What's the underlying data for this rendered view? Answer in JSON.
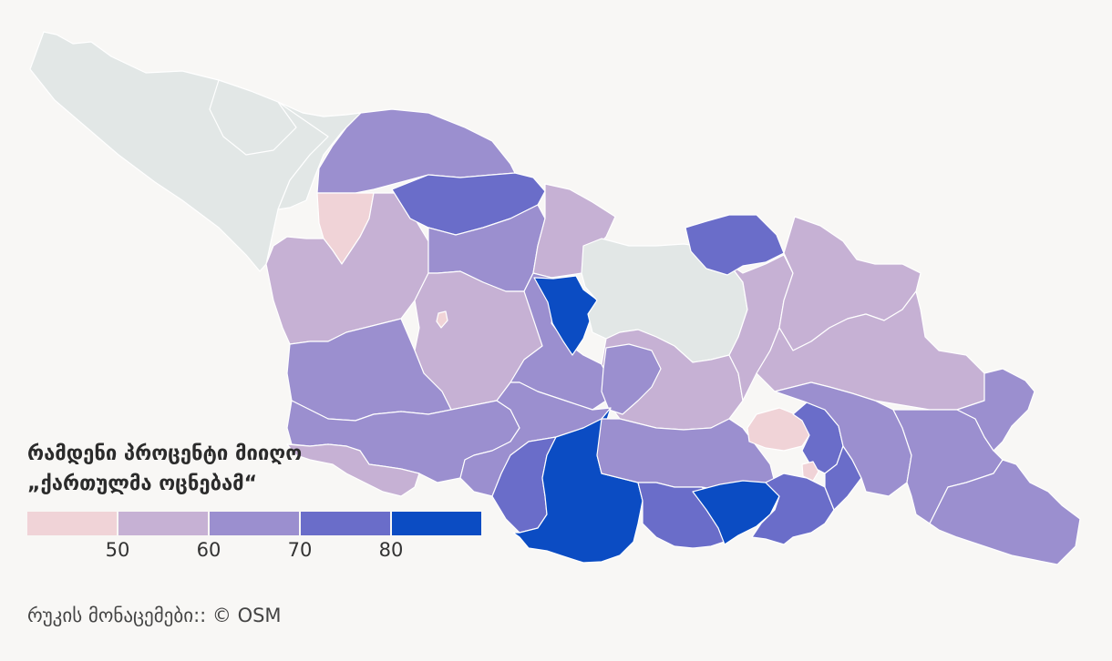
{
  "map": {
    "no_data_color": "#e2e7e6",
    "border_color": "#ffffff",
    "regions": [
      {
        "id": "abkhazia-west",
        "bin": "no-data"
      },
      {
        "id": "abkhazia-east",
        "bin": "no-data"
      },
      {
        "id": "abkhazia-kodori",
        "bin": "no-data"
      },
      {
        "id": "south-ossetia",
        "bin": "no-data"
      },
      {
        "id": "mestia",
        "bin": "60-70"
      },
      {
        "id": "zugdidi",
        "bin": "below-50"
      },
      {
        "id": "samegrelo-coast",
        "bin": "50-60"
      },
      {
        "id": "lentekhi",
        "bin": "70-80"
      },
      {
        "id": "ambrolauri",
        "bin": "60-70"
      },
      {
        "id": "oni",
        "bin": "50-60"
      },
      {
        "id": "kutaisi",
        "bin": "50-60"
      },
      {
        "id": "kutaisi-city",
        "bin": "below-50"
      },
      {
        "id": "guria",
        "bin": "60-70"
      },
      {
        "id": "adjara",
        "bin": "60-70"
      },
      {
        "id": "batumi",
        "bin": "50-60"
      },
      {
        "id": "imereti-east",
        "bin": "60-70"
      },
      {
        "id": "sachkhere",
        "bin": "80+"
      },
      {
        "id": "gori",
        "bin": "50-60"
      },
      {
        "id": "kaspi",
        "bin": "60-70"
      },
      {
        "id": "borjomi",
        "bin": "60-70"
      },
      {
        "id": "akhaltsikhe",
        "bin": "70-80"
      },
      {
        "id": "aspindza-ninotsminda",
        "bin": "80+"
      },
      {
        "id": "tetritskaro",
        "bin": "60-70"
      },
      {
        "id": "tsalka",
        "bin": "70-80"
      },
      {
        "id": "dmanisi",
        "bin": "80+"
      },
      {
        "id": "marneuli",
        "bin": "70-80"
      },
      {
        "id": "mtskheta",
        "bin": "50-60"
      },
      {
        "id": "kazbegi",
        "bin": "70-80"
      },
      {
        "id": "kakheti-mountain",
        "bin": "50-60"
      },
      {
        "id": "telavi",
        "bin": "50-60"
      },
      {
        "id": "tbilisi",
        "bin": "below-50"
      },
      {
        "id": "rustavi",
        "bin": "70-80"
      },
      {
        "id": "gardabani",
        "bin": "70-80"
      },
      {
        "id": "rustavi-small",
        "bin": "below-50"
      },
      {
        "id": "sagarejo",
        "bin": "60-70"
      },
      {
        "id": "signagi",
        "bin": "60-70"
      },
      {
        "id": "dedoplistskaro",
        "bin": "60-70"
      },
      {
        "id": "lagodekhi",
        "bin": "60-70"
      }
    ]
  },
  "legend": {
    "title_line1": "რამდენი პროცენტი მიიღო",
    "title_line2": "„ქართულმა ოცნებამ“",
    "bins": [
      {
        "id": "below-50",
        "color": "#f0d3d7"
      },
      {
        "id": "50-60",
        "color": "#c6b1d4"
      },
      {
        "id": "60-70",
        "color": "#9b8fcf"
      },
      {
        "id": "70-80",
        "color": "#6a6dc9"
      },
      {
        "id": "80+",
        "color": "#0b4cc3"
      }
    ],
    "ticks": [
      "50",
      "60",
      "70",
      "80"
    ]
  },
  "credit": "რუკის მონაცემები:: © OSM"
}
